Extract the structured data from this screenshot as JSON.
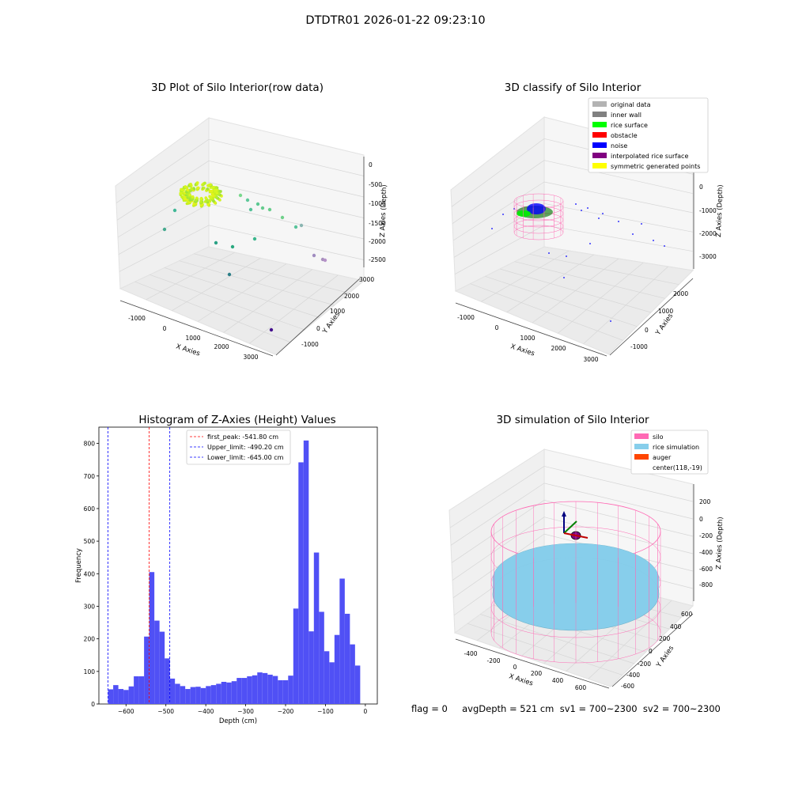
{
  "figure": {
    "suptitle": "DTDTR01 2026-01-22 09:23:10",
    "footer": "flag = 0     avgDepth = 521 cm  sv1 = 700~2300  sv2 = 700~2300"
  },
  "colors": {
    "hist_bar": "#5050f5",
    "first_peak": "#ff0000",
    "limit_line": "#0000ff",
    "silo": "#ff69b4",
    "rice_simulation": "#87ceeb",
    "auger": "#ff4500"
  },
  "chart_data": [
    {
      "type": "scatter",
      "title": "3D Plot of Silo Interior(row data)",
      "xlabel": "X Axies",
      "ylabel": "Y Axies",
      "zlabel": "Z Axies (Depth)",
      "xticks": [
        "-1000",
        "0",
        "1000",
        "2000",
        "3000"
      ],
      "yticks": [
        "-1000",
        "0",
        "1000",
        "2000",
        "3000"
      ],
      "zticks": [
        "0",
        "-500",
        "-1000",
        "-1500",
        "-2000",
        "-2500"
      ],
      "xlim": [
        -1500,
        3300
      ],
      "ylim": [
        -1500,
        3300
      ],
      "zlim": [
        -2800,
        100
      ]
    },
    {
      "type": "scatter",
      "title": "3D classify of Silo Interior",
      "xlabel": "X Axies",
      "ylabel": "Y Axies",
      "zlabel": "Z Axies (Depth)",
      "xticks": [
        "-1000",
        "0",
        "1000",
        "2000",
        "3000"
      ],
      "yticks": [
        "-1000",
        "0",
        "1000",
        "2000"
      ],
      "zticks": [
        "0",
        "-1000",
        "-2000",
        "-3000"
      ],
      "legend": [
        "original data",
        "inner wall",
        "rice surface",
        "obstacle",
        "noise",
        "interpolated rice surface",
        "symmetric generated points"
      ],
      "legend_colors": [
        "#b3b3b3",
        "#808080",
        "#00ff00",
        "#ff0000",
        "#0000ff",
        "#800080",
        "#ffff00"
      ],
      "legend_position": "top-right"
    },
    {
      "type": "bar",
      "title": "Histogram of Z-Axies (Height) Values",
      "xlabel": "Depth (cm)",
      "ylabel": "Frequency",
      "xlim": [
        -668,
        30
      ],
      "ylim": [
        0,
        850
      ],
      "xticks": [
        -600,
        -500,
        -400,
        -300,
        -200,
        -100,
        0
      ],
      "yticks": [
        0,
        100,
        200,
        300,
        400,
        500,
        600,
        700,
        800
      ],
      "bin_start": -645,
      "bin_width": 12.9,
      "values": [
        45,
        58,
        46,
        43,
        54,
        85,
        85,
        207,
        405,
        256,
        222,
        140,
        78,
        62,
        55,
        46,
        52,
        53,
        49,
        55,
        58,
        62,
        68,
        66,
        70,
        80,
        80,
        85,
        88,
        97,
        95,
        90,
        86,
        73,
        73,
        87,
        293,
        742,
        809,
        223,
        465,
        283,
        162,
        128,
        212,
        385,
        277,
        183,
        118
      ],
      "lines": [
        {
          "label": "first_peak: -541.80 cm",
          "x": -541.8,
          "color": "#ff0000"
        },
        {
          "label": "Upper_limit: -490.20 cm",
          "x": -490.2,
          "color": "#0000ff"
        },
        {
          "label": "Lower_limit: -645.00 cm",
          "x": -645.0,
          "color": "#0000ff"
        }
      ],
      "legend_position": "top-center"
    },
    {
      "type": "scatter",
      "title": "3D simulation of Silo Interior",
      "xlabel": "X Axies",
      "ylabel": "Y Axies",
      "zlabel": "Z Axies (Depth)",
      "xticks": [
        "-400",
        "-200",
        "0",
        "200",
        "400",
        "600"
      ],
      "yticks": [
        "-600",
        "-400",
        "-200",
        "0",
        "200",
        "400",
        "600"
      ],
      "zticks": [
        "200",
        "0",
        "-200",
        "-400",
        "-600",
        "-800"
      ],
      "legend": [
        "silo",
        "rice simulation",
        "auger",
        "center(118,-19)"
      ],
      "legend_colors": [
        "#ff69b4",
        "#87ceeb",
        "#ff4500",
        ""
      ],
      "legend_position": "top-right"
    }
  ]
}
